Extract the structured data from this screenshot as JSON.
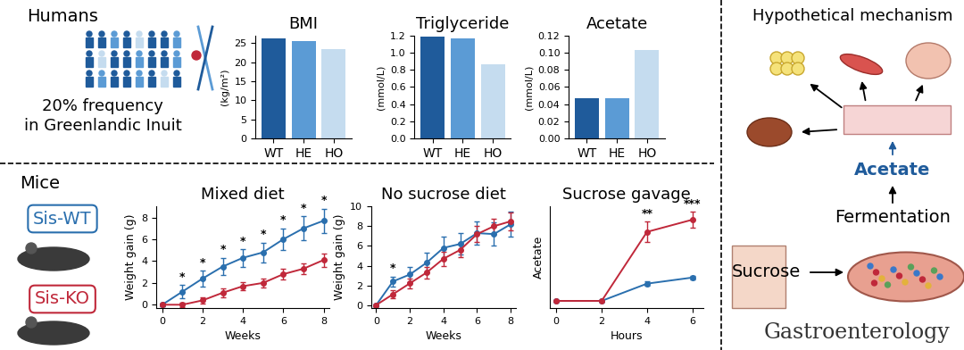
{
  "chart_data": [
    {
      "type": "bar",
      "title": "BMI",
      "y_label": "(kg/m²)",
      "categories": [
        "WT",
        "HE",
        "HO"
      ],
      "values": [
        26.2,
        25.7,
        23.5
      ],
      "colors": [
        "#1f5b9b",
        "#5b9bd5",
        "#c5dcef"
      ],
      "ylim": [
        0,
        27
      ],
      "yticks": [
        0,
        5,
        10,
        15,
        20,
        25
      ]
    },
    {
      "type": "bar",
      "title": "Triglyceride",
      "y_label": "(mmol/L)",
      "categories": [
        "WT",
        "HE",
        "HO"
      ],
      "values": [
        1.19,
        1.17,
        0.87
      ],
      "colors": [
        "#1f5b9b",
        "#5b9bd5",
        "#c5dcef"
      ],
      "ylim": [
        0,
        1.2
      ],
      "yticks": [
        {
          "value": 0,
          "label": "0.0"
        },
        {
          "value": 0.2,
          "label": "0.2"
        },
        {
          "value": 0.4,
          "label": "0.4"
        },
        {
          "value": 0.6,
          "label": "0.6"
        },
        {
          "value": 0.8,
          "label": "0.8"
        },
        {
          "value": 1.0,
          "label": "1.0"
        },
        {
          "value": 1.2,
          "label": "1.2"
        }
      ]
    },
    {
      "type": "bar",
      "title": "Acetate",
      "y_label": "(mmol/L)",
      "categories": [
        "WT",
        "HE",
        "HO"
      ],
      "values": [
        0.047,
        0.047,
        0.103
      ],
      "colors": [
        "#1f5b9b",
        "#5b9bd5",
        "#c5dcef"
      ],
      "ylim": [
        0,
        0.12
      ],
      "yticks": [
        {
          "value": 0,
          "label": "0.00"
        },
        {
          "value": 0.02,
          "label": "0.02"
        },
        {
          "value": 0.04,
          "label": "0.04"
        },
        {
          "value": 0.06,
          "label": "0.06"
        },
        {
          "value": 0.08,
          "label": "0.08"
        },
        {
          "value": 0.1,
          "label": "0.10"
        },
        {
          "value": 0.12,
          "label": "0.12"
        }
      ]
    },
    {
      "type": "line",
      "title": "Mixed diet",
      "x_label": "Weeks",
      "y_label": "Weight gain (g)",
      "x": [
        0,
        1,
        2,
        3,
        4,
        5,
        6,
        7,
        8
      ],
      "series": [
        {
          "name": "Sis-WT",
          "color": "#2a6fae",
          "marker": "o",
          "values": [
            0,
            1.2,
            2.4,
            3.5,
            4.3,
            4.8,
            6.0,
            7.0,
            7.7
          ],
          "errors": [
            0.1,
            0.6,
            0.7,
            0.8,
            0.8,
            0.9,
            1.0,
            1.1,
            1.1
          ]
        },
        {
          "name": "Sis-KO",
          "color": "#c0283a",
          "marker": "o",
          "values": [
            0,
            0.0,
            0.4,
            1.1,
            1.7,
            2.0,
            2.8,
            3.3,
            4.1
          ],
          "errors": [
            0.1,
            0.2,
            0.3,
            0.4,
            0.4,
            0.4,
            0.5,
            0.5,
            0.6
          ]
        }
      ],
      "significance": [
        {
          "x": 1,
          "label": "*"
        },
        {
          "x": 2,
          "label": "*"
        },
        {
          "x": 3,
          "label": "*"
        },
        {
          "x": 4,
          "label": "*"
        },
        {
          "x": 5,
          "label": "*"
        },
        {
          "x": 6,
          "label": "*"
        },
        {
          "x": 7,
          "label": "*"
        },
        {
          "x": 8,
          "label": "*"
        }
      ],
      "xlim": [
        -0.3,
        8.3
      ],
      "xticks": [
        0,
        2,
        4,
        6,
        8
      ],
      "ylim": [
        -0.3,
        9
      ],
      "yticks": [
        0,
        2,
        4,
        6,
        8
      ]
    },
    {
      "type": "line",
      "title": "No sucrose diet",
      "x_label": "Weeks",
      "y_label": "Weight gain (g)",
      "x": [
        0,
        1,
        2,
        3,
        4,
        5,
        6,
        7,
        8
      ],
      "series": [
        {
          "name": "Sis-WT",
          "color": "#2a6fae",
          "marker": "o",
          "values": [
            0,
            2.4,
            3.1,
            4.3,
            5.8,
            6.2,
            7.3,
            7.2,
            8.2
          ],
          "errors": [
            0.1,
            0.5,
            0.8,
            1.0,
            1.1,
            1.1,
            1.2,
            1.2,
            1.3
          ]
        },
        {
          "name": "Sis-KO",
          "color": "#c0283a",
          "marker": "o",
          "values": [
            0,
            1.1,
            2.2,
            3.3,
            4.7,
            5.6,
            7.2,
            8.0,
            8.5
          ],
          "errors": [
            0.1,
            0.4,
            0.5,
            0.6,
            0.7,
            0.7,
            0.8,
            0.8,
            0.9
          ]
        }
      ],
      "significance": [
        {
          "x": 1,
          "label": "*"
        }
      ],
      "xlim": [
        -0.3,
        8.3
      ],
      "xticks": [
        0,
        2,
        4,
        6,
        8
      ],
      "ylim": [
        -0.3,
        10
      ],
      "yticks": [
        0,
        2,
        4,
        6,
        8,
        10
      ]
    },
    {
      "type": "line",
      "title": "Sucrose gavage",
      "x_label": "Hours",
      "y_label": "Acetate",
      "x": [
        0,
        2,
        4,
        6
      ],
      "series": [
        {
          "name": "Sis-WT",
          "color": "#2a6fae",
          "marker": "o",
          "values": [
            0.35,
            0.35,
            1.2,
            1.5
          ],
          "errors": [
            0.05,
            0.05,
            0.1,
            0.1
          ]
        },
        {
          "name": "Sis-KO",
          "color": "#c0283a",
          "marker": "o",
          "values": [
            0.35,
            0.35,
            3.75,
            4.35
          ],
          "errors": [
            0.05,
            0.05,
            0.5,
            0.4
          ]
        }
      ],
      "significance": [
        {
          "x": 4,
          "label": "**"
        },
        {
          "x": 6,
          "label": "***"
        }
      ],
      "tick_labels": "x",
      "xlim": [
        -0.3,
        6.5
      ],
      "xticks": [
        0,
        2,
        4,
        6
      ],
      "ylim": [
        0,
        5
      ],
      "yticks": []
    }
  ],
  "panels": {
    "humans": {
      "title": "Humans",
      "note": "20% frequency\nin Greenlandic Inuit"
    },
    "mice": {
      "title": "Mice"
    },
    "mechanism": {
      "title": "Hypothetical mechanism",
      "metabolite": "Acetate",
      "process": "Fermentation",
      "substrate": "Sucrose"
    },
    "journal": "Gastroenterology"
  }
}
